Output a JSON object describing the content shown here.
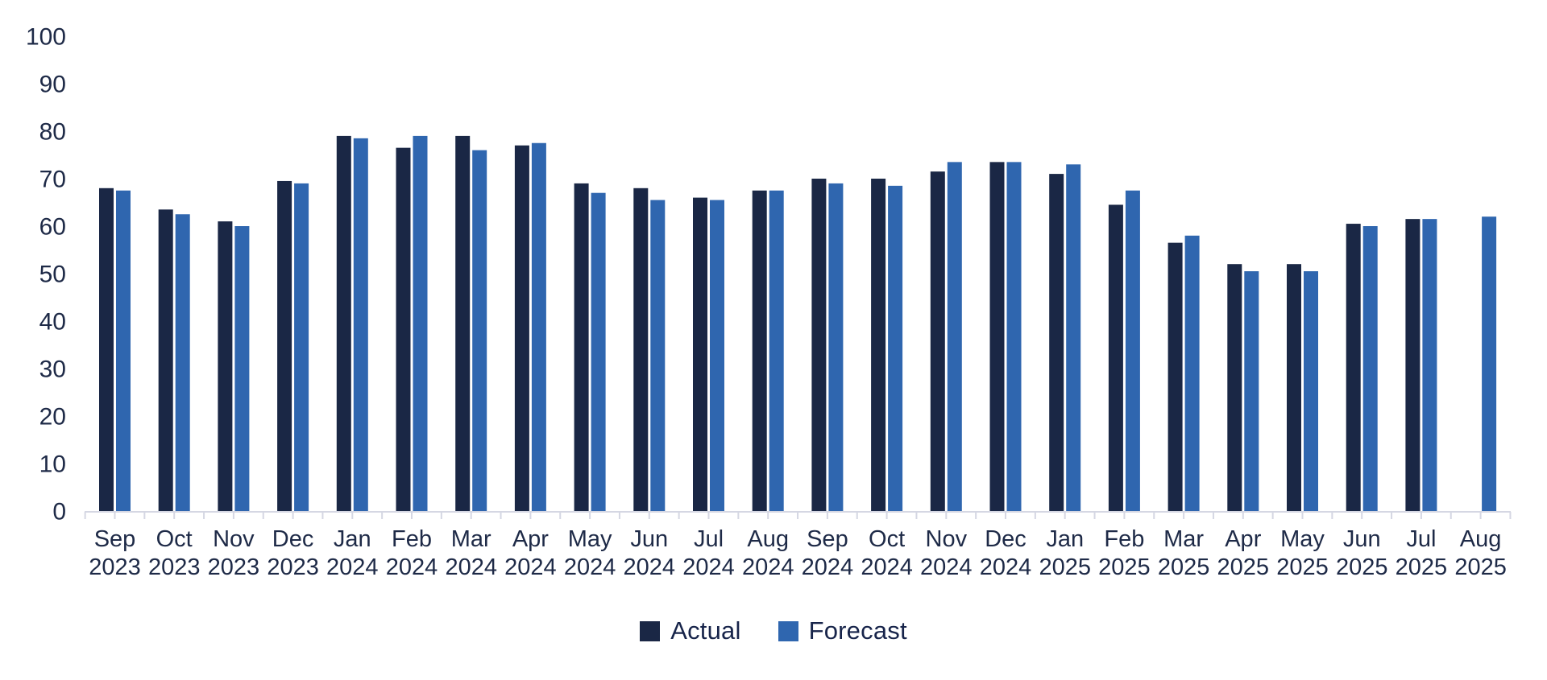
{
  "chart_data": {
    "type": "bar",
    "title": "",
    "xlabel": "",
    "ylabel": "",
    "categories": [
      "Sep 2023",
      "Oct 2023",
      "Nov 2023",
      "Dec 2023",
      "Jan 2024",
      "Feb 2024",
      "Mar 2024",
      "Apr 2024",
      "May 2024",
      "Jun 2024",
      "Jul 2024",
      "Aug 2024",
      "Sep 2024",
      "Oct 2024",
      "Nov 2024",
      "Dec 2024",
      "Jan 2025",
      "Feb 2025",
      "Mar 2025",
      "Apr 2025",
      "May 2025",
      "Jun 2025",
      "Jul 2025",
      "Aug 2025"
    ],
    "series": [
      {
        "name": "Actual",
        "color": "#1A2745",
        "values": [
          68,
          63.5,
          61,
          69.5,
          79,
          76.5,
          79,
          77,
          69,
          68,
          66,
          67.5,
          70,
          70,
          71.5,
          73.5,
          71,
          64.5,
          56.5,
          52,
          52,
          60.5,
          61.5,
          null
        ]
      },
      {
        "name": "Forecast",
        "color": "#2F66AF",
        "values": [
          67.5,
          62.5,
          60,
          69,
          78.5,
          79,
          76,
          77.5,
          67,
          65.5,
          65.5,
          67.5,
          69,
          68.5,
          73.5,
          73.5,
          73,
          67.5,
          58,
          50.5,
          50.5,
          60,
          61.5,
          62
        ]
      }
    ],
    "ylim": [
      0,
      100
    ],
    "ytick_step": 10,
    "yticks": [
      0,
      10,
      20,
      30,
      40,
      50,
      60,
      70,
      80,
      90,
      100
    ],
    "grid": false,
    "legend_position": "bottom",
    "axis_color": "#D5D7E3",
    "label_color": "#1E2A47"
  }
}
